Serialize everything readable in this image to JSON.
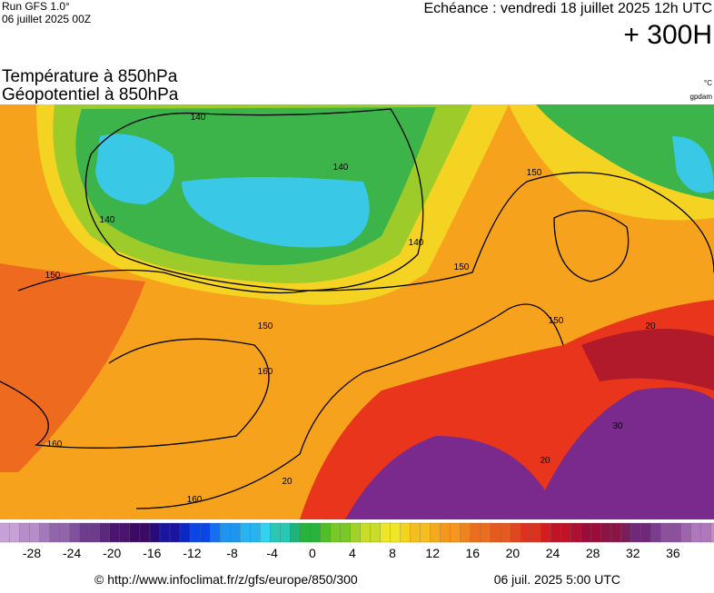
{
  "header": {
    "run": "Run GFS 1.0°",
    "run_date": "06 juillet 2025 00Z",
    "valid": "Echéance : vendredi 18 juillet 2025 12h UTC",
    "lead": "+ 300H"
  },
  "title": {
    "line1": "Température à 850hPa",
    "line2": "Géopotentiel à 850hPa",
    "unit": "°C",
    "contour_unit": "gpdam"
  },
  "map": {
    "contour_labels": [
      140,
      140,
      140,
      140,
      150,
      150,
      150,
      150,
      150,
      160,
      160,
      160,
      20,
      20,
      20,
      30
    ]
  },
  "colorbar": {
    "ticks": [
      -28,
      -24,
      -20,
      -16,
      -12,
      -8,
      -4,
      0,
      4,
      8,
      12,
      16,
      20,
      24,
      28,
      32,
      36
    ]
  },
  "footer": {
    "source": "© http://www.infoclimat.fr/z/gfs/europe/850/300",
    "generated": "06 juil. 2025  5:00 UTC"
  }
}
